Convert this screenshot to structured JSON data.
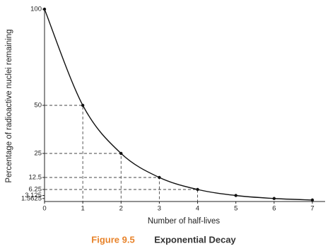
{
  "chart_data": {
    "type": "line",
    "x_label": "Number of half-lives",
    "y_label": "Percentage of radioactive nuclei remaining",
    "caption_label": "Figure 9.5",
    "caption_title": "Exponential Decay",
    "x": [
      0,
      1,
      2,
      3,
      4,
      5,
      6,
      7
    ],
    "series": [
      {
        "values": [
          100,
          50,
          25,
          12.5,
          6.25,
          3.125,
          1.5625,
          0.78125
        ],
        "color": "#111111"
      }
    ],
    "guide_points": [
      1,
      2,
      3,
      4
    ],
    "xlim": [
      0,
      7
    ],
    "ylim": [
      0,
      100
    ],
    "xticks": [
      0,
      1,
      2,
      3,
      4,
      5,
      6,
      7
    ],
    "yticks": [
      1.5625,
      3.125,
      6.25,
      12.5,
      25,
      50,
      100
    ]
  }
}
